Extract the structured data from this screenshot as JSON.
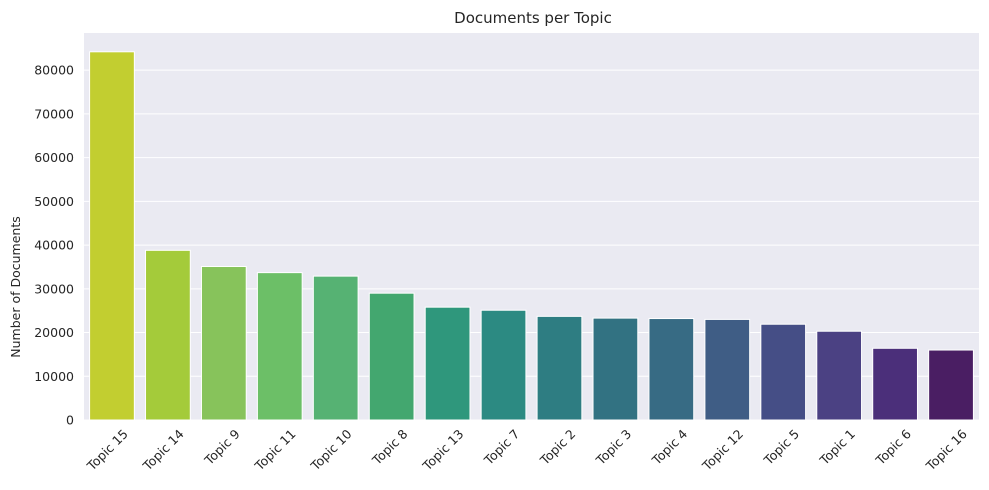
{
  "chart_data": {
    "type": "bar",
    "title": "Documents per Topic",
    "xlabel": "",
    "ylabel": "Number of Documents",
    "ylim": [
      0,
      88500
    ],
    "yticks": [
      0,
      10000,
      20000,
      30000,
      40000,
      50000,
      60000,
      70000,
      80000
    ],
    "ytick_labels": [
      "0",
      "10000",
      "20000",
      "30000",
      "40000",
      "50000",
      "60000",
      "70000",
      "80000"
    ],
    "categories": [
      "Topic 15",
      "Topic 14",
      "Topic 9",
      "Topic 11",
      "Topic 10",
      "Topic 8",
      "Topic 13",
      "Topic 7",
      "Topic 2",
      "Topic 3",
      "Topic 4",
      "Topic 12",
      "Topic 5",
      "Topic 1",
      "Topic 6",
      "Topic 16"
    ],
    "values": [
      84200,
      38800,
      35100,
      33700,
      32900,
      29000,
      25800,
      25100,
      23700,
      23300,
      23200,
      23000,
      21900,
      20300,
      16400,
      16000
    ],
    "colors": [
      "#c2ce30",
      "#a4cb3a",
      "#87c35b",
      "#6cbf67",
      "#56b273",
      "#43a76f",
      "#2f977c",
      "#2c8a82",
      "#2e7d82",
      "#327282",
      "#376b84",
      "#3f5d85",
      "#454e86",
      "#4b4183",
      "#4b2f7a",
      "#4a1e63"
    ],
    "grid": true,
    "background": "#eaeaf2",
    "grid_color": "#ffffff"
  }
}
